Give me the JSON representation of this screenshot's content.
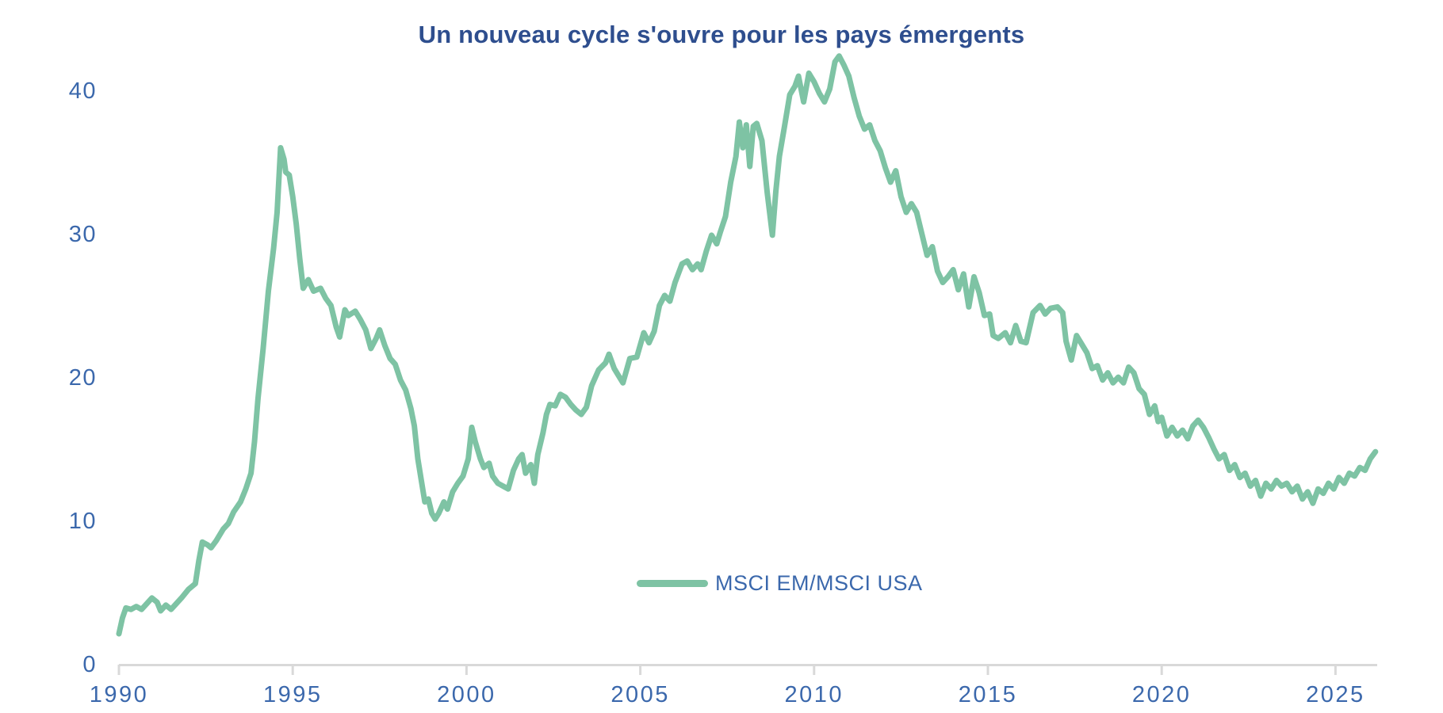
{
  "page": {
    "background": "#ffffff"
  },
  "chart_data": {
    "type": "line",
    "title": "Un nouveau cycle s'ouvre pour les pays émergents",
    "xlabel": "",
    "ylabel": "",
    "grid": false,
    "legend_position": "inside-bottom-center",
    "xlim": [
      1990,
      2026.2
    ],
    "ylim": [
      0,
      43.6
    ],
    "x_ticks": [
      1990,
      1995,
      2000,
      2005,
      2010,
      2015,
      2020,
      2025
    ],
    "y_ticks": [
      0,
      10,
      20,
      30,
      40
    ],
    "colors": {
      "title": "#2E4E8E",
      "tick_labels": "#3B68AC",
      "axis_line": "#D9D9D9",
      "series": "#7EC3A4"
    },
    "legend": [
      {
        "label": "MSCI EM/MSCI USA",
        "color": "#7EC3A4"
      }
    ],
    "series": [
      {
        "name": "MSCI EM/MSCI USA",
        "color": "#7EC3A4",
        "x": [
          1990.0,
          1990.1,
          1990.2,
          1990.35,
          1990.5,
          1990.65,
          1990.8,
          1990.95,
          1991.1,
          1991.2,
          1991.35,
          1991.5,
          1991.65,
          1991.8,
          1992.0,
          1992.2,
          1992.3,
          1992.4,
          1992.55,
          1992.65,
          1992.8,
          1993.0,
          1993.15,
          1993.3,
          1993.5,
          1993.65,
          1993.8,
          1993.9,
          1994.0,
          1994.15,
          1994.3,
          1994.45,
          1994.55,
          1994.65,
          1994.75,
          1994.8,
          1994.9,
          1995.0,
          1995.1,
          1995.2,
          1995.3,
          1995.45,
          1995.6,
          1995.8,
          1995.95,
          1996.1,
          1996.25,
          1996.35,
          1996.5,
          1996.6,
          1996.8,
          1996.95,
          1997.1,
          1997.25,
          1997.4,
          1997.5,
          1997.65,
          1997.8,
          1997.95,
          1998.1,
          1998.25,
          1998.4,
          1998.5,
          1998.6,
          1998.7,
          1998.8,
          1998.9,
          1999.0,
          1999.1,
          1999.2,
          1999.35,
          1999.45,
          1999.6,
          1999.75,
          1999.9,
          2000.05,
          2000.15,
          2000.25,
          2000.4,
          2000.5,
          2000.65,
          2000.75,
          2000.9,
          2001.05,
          2001.2,
          2001.35,
          2001.5,
          2001.6,
          2001.7,
          2001.85,
          2001.95,
          2002.05,
          2002.2,
          2002.3,
          2002.4,
          2002.55,
          2002.7,
          2002.85,
          2003.0,
          2003.15,
          2003.3,
          2003.45,
          2003.6,
          2003.8,
          2004.0,
          2004.1,
          2004.25,
          2004.35,
          2004.5,
          2004.7,
          2004.9,
          2005.1,
          2005.25,
          2005.4,
          2005.55,
          2005.7,
          2005.85,
          2006.0,
          2006.2,
          2006.35,
          2006.5,
          2006.65,
          2006.75,
          2006.9,
          2007.05,
          2007.2,
          2007.3,
          2007.45,
          2007.6,
          2007.75,
          2007.85,
          2007.95,
          2008.05,
          2008.15,
          2008.25,
          2008.35,
          2008.5,
          2008.65,
          2008.8,
          2008.9,
          2009.0,
          2009.15,
          2009.3,
          2009.45,
          2009.55,
          2009.7,
          2009.85,
          2010.0,
          2010.15,
          2010.3,
          2010.45,
          2010.6,
          2010.72,
          2010.85,
          2011.0,
          2011.15,
          2011.3,
          2011.45,
          2011.6,
          2011.75,
          2011.9,
          2012.05,
          2012.2,
          2012.35,
          2012.5,
          2012.65,
          2012.8,
          2012.95,
          2013.1,
          2013.25,
          2013.4,
          2013.55,
          2013.7,
          2013.85,
          2014.0,
          2014.15,
          2014.3,
          2014.45,
          2014.6,
          2014.75,
          2014.9,
          2015.05,
          2015.15,
          2015.3,
          2015.5,
          2015.65,
          2015.8,
          2015.95,
          2016.1,
          2016.3,
          2016.5,
          2016.65,
          2016.8,
          2017.0,
          2017.15,
          2017.25,
          2017.4,
          2017.55,
          2017.7,
          2017.85,
          2018.0,
          2018.15,
          2018.3,
          2018.45,
          2018.6,
          2018.75,
          2018.9,
          2019.05,
          2019.2,
          2019.35,
          2019.5,
          2019.65,
          2019.8,
          2019.9,
          2020.0,
          2020.15,
          2020.3,
          2020.45,
          2020.6,
          2020.75,
          2020.9,
          2021.05,
          2021.2,
          2021.35,
          2021.5,
          2021.65,
          2021.8,
          2021.95,
          2022.1,
          2022.25,
          2022.4,
          2022.55,
          2022.7,
          2022.85,
          2023.0,
          2023.15,
          2023.3,
          2023.45,
          2023.6,
          2023.75,
          2023.9,
          2024.05,
          2024.2,
          2024.35,
          2024.5,
          2024.65,
          2024.8,
          2024.95,
          2025.1,
          2025.25,
          2025.4,
          2025.55,
          2025.7,
          2025.85,
          2026.0,
          2026.15
        ],
        "values": [
          2.1,
          3.2,
          3.9,
          3.8,
          4.0,
          3.8,
          4.2,
          4.6,
          4.3,
          3.7,
          4.1,
          3.8,
          4.2,
          4.6,
          5.2,
          5.6,
          7.2,
          8.5,
          8.3,
          8.1,
          8.6,
          9.4,
          9.8,
          10.6,
          11.3,
          12.2,
          13.3,
          15.5,
          18.5,
          22.0,
          26.0,
          29.0,
          31.5,
          36.0,
          35.2,
          34.3,
          34.1,
          32.6,
          30.7,
          28.3,
          26.2,
          26.8,
          26.0,
          26.2,
          25.5,
          25.0,
          23.5,
          22.8,
          24.7,
          24.3,
          24.6,
          24.0,
          23.3,
          22.0,
          22.7,
          23.3,
          22.2,
          21.3,
          20.9,
          19.8,
          19.1,
          17.8,
          16.6,
          14.3,
          12.8,
          11.3,
          11.5,
          10.5,
          10.1,
          10.5,
          11.3,
          10.8,
          12.0,
          12.6,
          13.1,
          14.3,
          16.5,
          15.5,
          14.3,
          13.7,
          14.0,
          13.1,
          12.6,
          12.4,
          12.2,
          13.5,
          14.3,
          14.6,
          13.3,
          13.9,
          12.6,
          14.6,
          16.1,
          17.4,
          18.1,
          18.0,
          18.8,
          18.6,
          18.1,
          17.7,
          17.4,
          17.9,
          19.4,
          20.5,
          21.0,
          21.6,
          20.6,
          20.2,
          19.6,
          21.3,
          21.4,
          23.1,
          22.4,
          23.2,
          25.0,
          25.7,
          25.3,
          26.6,
          27.9,
          28.1,
          27.5,
          27.9,
          27.5,
          28.8,
          29.9,
          29.3,
          30.1,
          31.2,
          33.6,
          35.4,
          37.8,
          36.0,
          37.6,
          34.7,
          37.5,
          37.7,
          36.5,
          32.9,
          29.9,
          33.0,
          35.4,
          37.5,
          39.7,
          40.3,
          41.0,
          39.2,
          41.2,
          40.6,
          39.8,
          39.2,
          40.1,
          42.0,
          42.4,
          41.8,
          41.0,
          39.5,
          38.2,
          37.3,
          37.6,
          36.5,
          35.8,
          34.6,
          33.6,
          34.4,
          32.6,
          31.5,
          32.1,
          31.5,
          30.0,
          28.5,
          29.1,
          27.4,
          26.6,
          27.0,
          27.5,
          26.1,
          27.2,
          24.9,
          27.0,
          25.9,
          24.3,
          24.4,
          22.9,
          22.7,
          23.1,
          22.4,
          23.6,
          22.5,
          22.4,
          24.5,
          25.0,
          24.4,
          24.8,
          24.9,
          24.5,
          22.5,
          21.2,
          22.9,
          22.3,
          21.7,
          20.6,
          20.8,
          19.8,
          20.3,
          19.6,
          20.0,
          19.6,
          20.7,
          20.3,
          19.2,
          18.8,
          17.4,
          18.0,
          16.9,
          17.2,
          15.9,
          16.5,
          15.9,
          16.3,
          15.7,
          16.6,
          17.0,
          16.5,
          15.8,
          15.0,
          14.3,
          14.6,
          13.5,
          13.9,
          13.0,
          13.3,
          12.4,
          12.8,
          11.7,
          12.6,
          12.2,
          12.8,
          12.4,
          12.6,
          12.0,
          12.4,
          11.5,
          12.0,
          11.2,
          12.2,
          11.9,
          12.6,
          12.2,
          13.0,
          12.6,
          13.3,
          13.1,
          13.7,
          13.5,
          14.3,
          14.8
        ]
      }
    ]
  }
}
